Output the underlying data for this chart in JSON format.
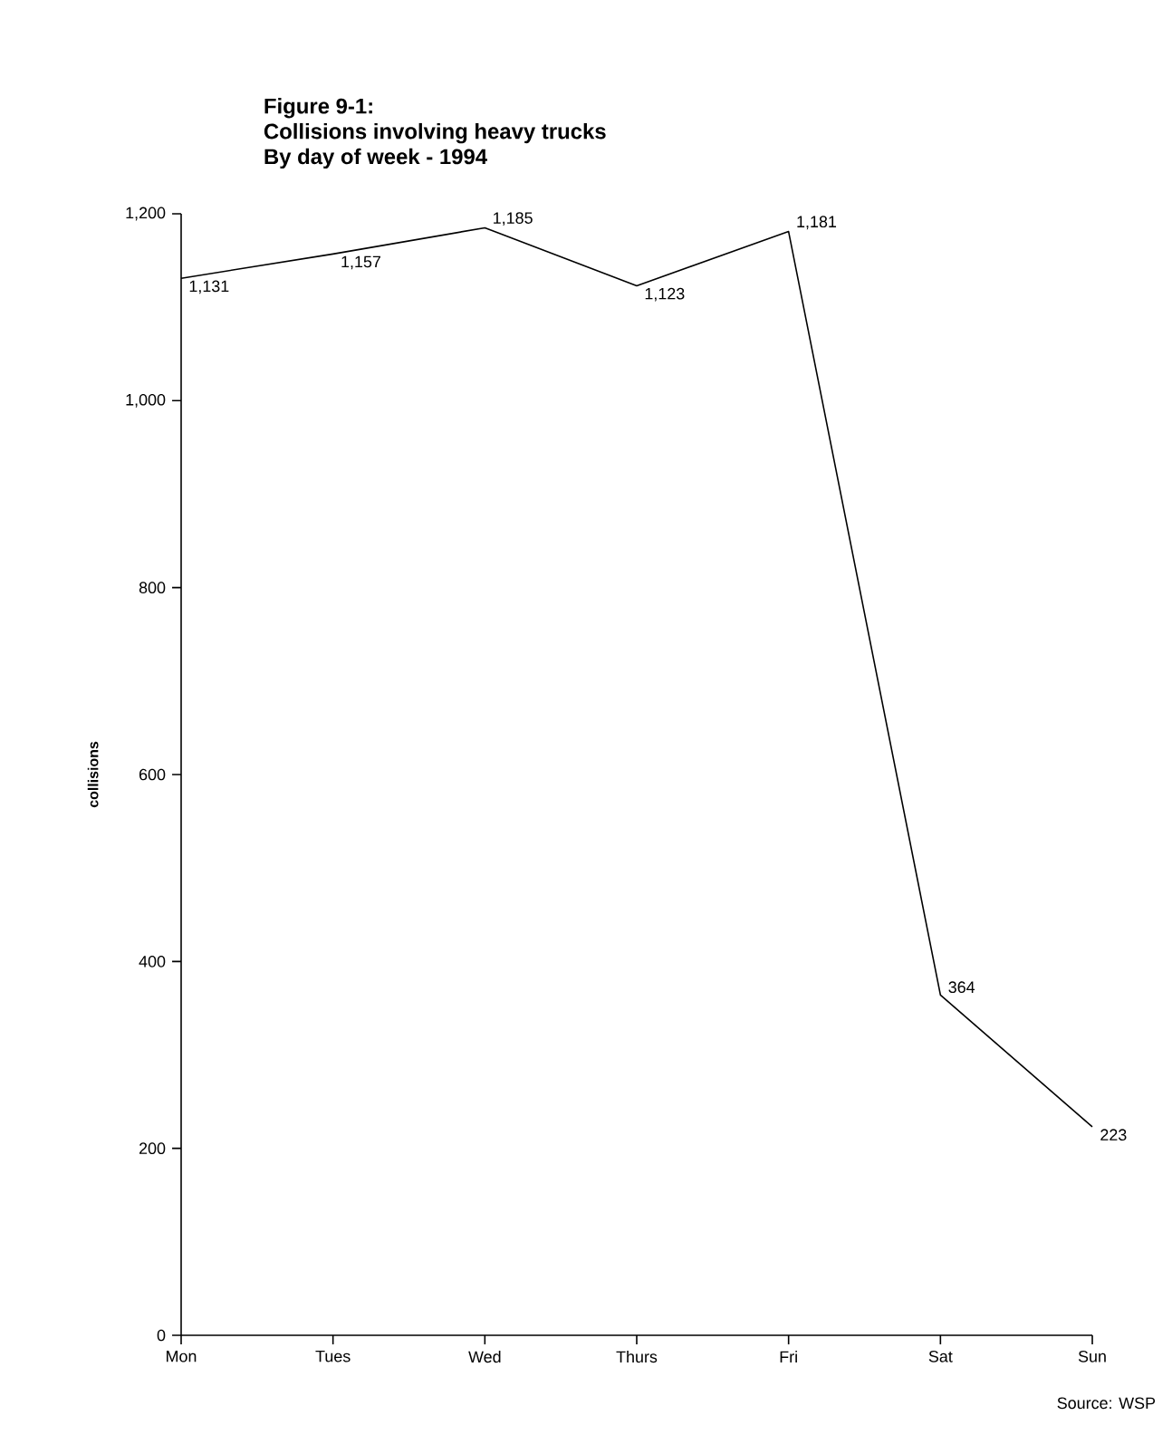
{
  "chart_data": {
    "type": "line",
    "title": "Figure 9-1:",
    "subtitle": "Collisions involving heavy trucks",
    "annotations": [
      "By day of week - 1994",
      "Source: WSP"
    ],
    "ylabel": "collisions",
    "categories": [
      "Mon",
      "Tues",
      "Wed",
      "Thurs",
      "Fri",
      "Sat",
      "Sun"
    ],
    "values": [
      1131,
      1157,
      1185,
      1123,
      1181,
      364,
      223
    ],
    "value_labels": [
      "1,131",
      "1,157",
      "1,185",
      "1,123",
      "1,181",
      "364",
      "223"
    ],
    "color": "#000000",
    "ylim": [
      0,
      1200
    ],
    "yticks": [
      0,
      200,
      400,
      600,
      800,
      {
        "value": 1000,
        "label": "1,000"
      },
      {
        "value": 1200,
        "label": "1,200"
      }
    ]
  }
}
